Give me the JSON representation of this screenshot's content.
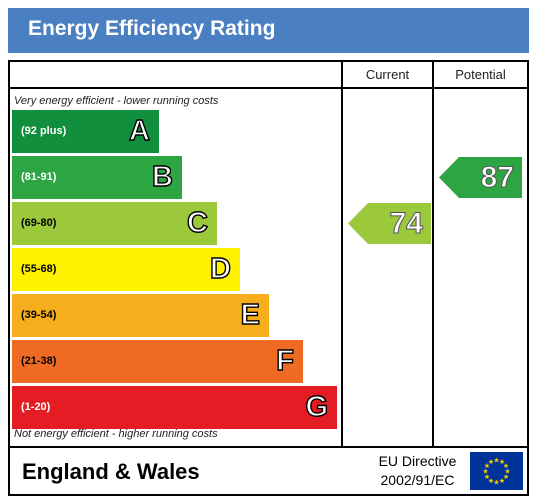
{
  "title": "Energy Efficiency Rating",
  "columns": {
    "current": "Current",
    "potential": "Potential"
  },
  "top_note": "Very energy efficient - lower running costs",
  "bottom_note": "Not energy efficient - higher running costs",
  "footer": {
    "region": "England & Wales",
    "directive_line1": "EU Directive",
    "directive_line2": "2002/91/EC",
    "flag_icon": "eu-flag-icon"
  },
  "chart_data": {
    "type": "bar",
    "categories": [
      "A",
      "B",
      "C",
      "D",
      "E",
      "F",
      "G"
    ],
    "ranges": [
      "(92 plus)",
      "(81-91)",
      "(69-80)",
      "(55-68)",
      "(39-54)",
      "(21-38)",
      "(1-20)"
    ],
    "band_colors": [
      "#128f3d",
      "#2ea543",
      "#9cc83b",
      "#fff200",
      "#f7ae1d",
      "#ef6b24",
      "#e31d23"
    ],
    "range_text_colors": [
      "#ffffff",
      "#ffffff",
      "#000000",
      "#000000",
      "#000000",
      "#000000",
      "#ffffff"
    ],
    "current": {
      "value": 74,
      "band": "C",
      "color": "#9cc83b"
    },
    "potential": {
      "value": 87,
      "band": "B",
      "color": "#2ea543"
    }
  }
}
